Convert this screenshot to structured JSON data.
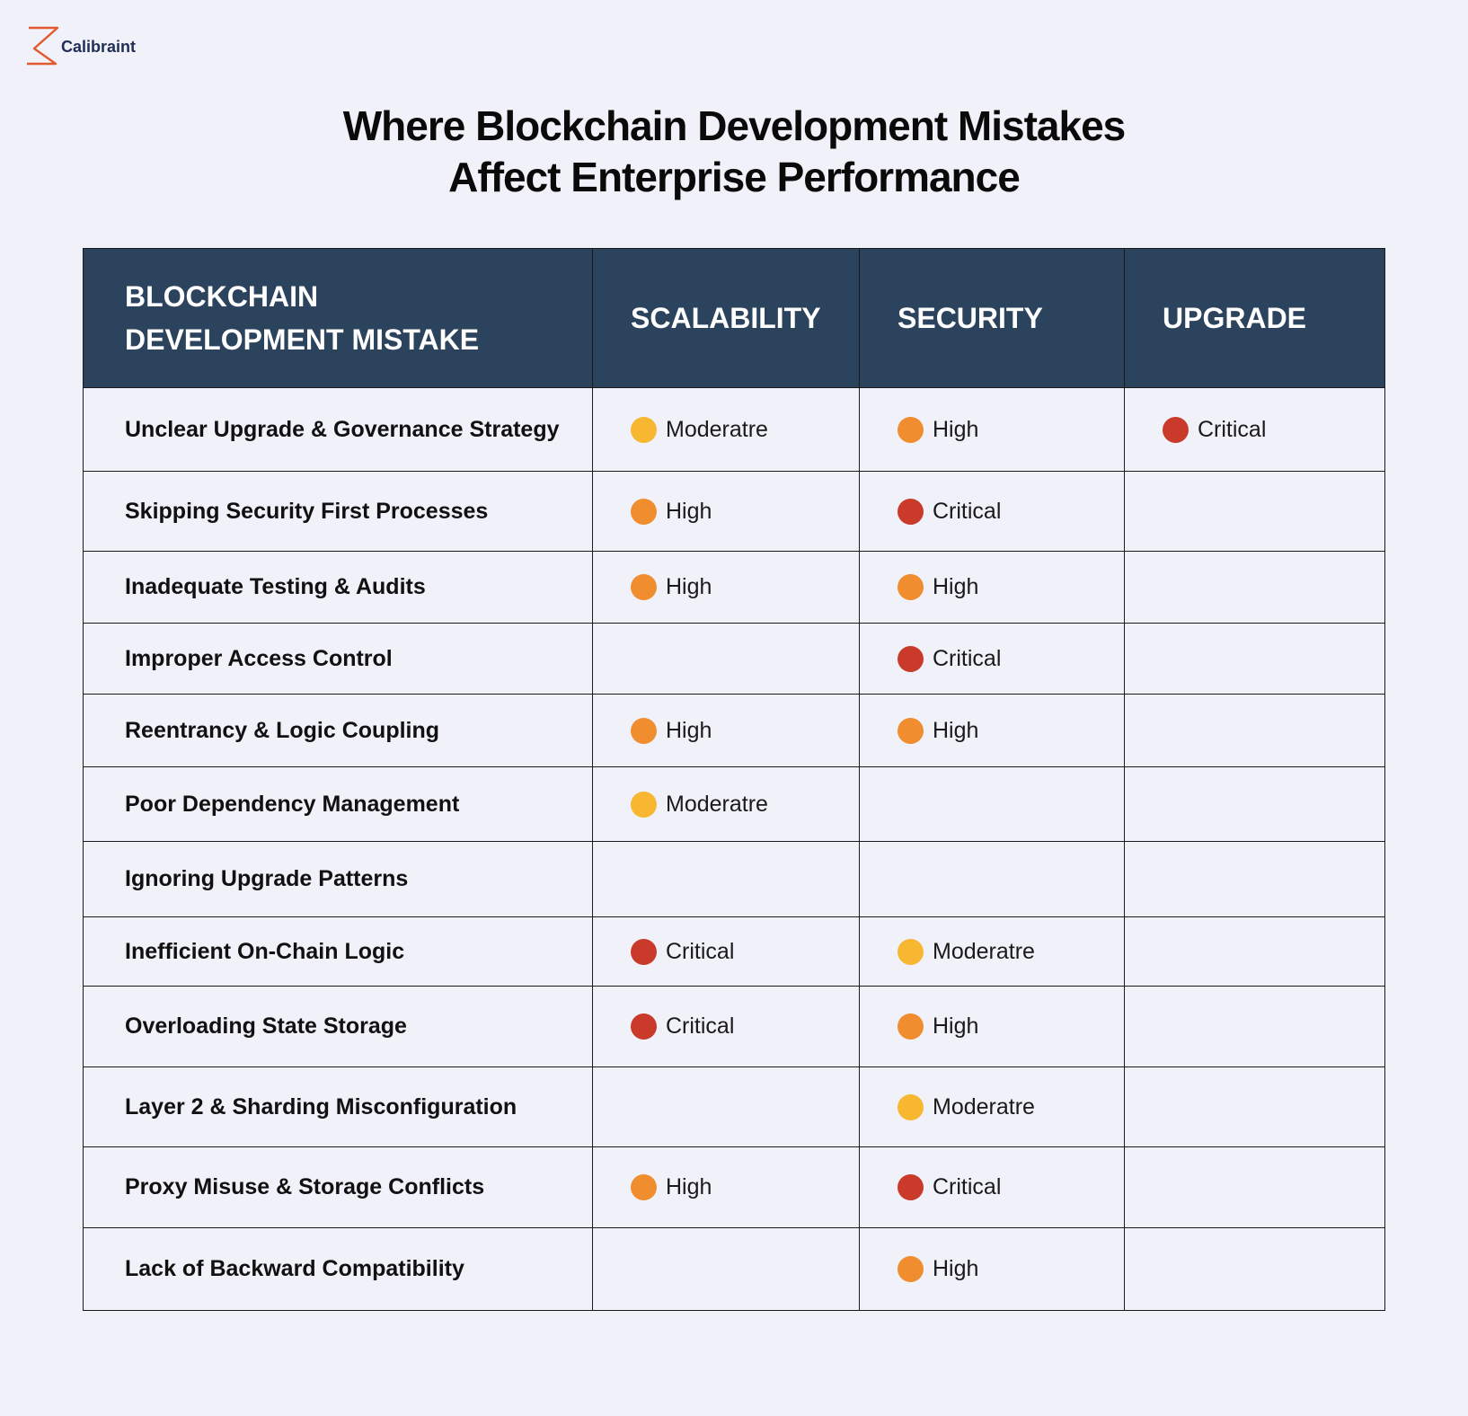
{
  "brand": {
    "name": "Calibraint",
    "icon": "calibraint-logo-icon",
    "color": "#e25a2d"
  },
  "title": {
    "line1": "Where Blockchain Development Mistakes",
    "line2": "Affect Enterprise Performance"
  },
  "table": {
    "headers": {
      "mistake_line1": "BLOCKCHAIN",
      "mistake_line2": "DEVELOPMENT MISTAKE",
      "scalability": "SCALABILITY",
      "security": "SECURITY",
      "upgrade": "UPGRADE"
    },
    "header_bg": "#2c435e",
    "level_colors": {
      "Moderatre": "#f7b731",
      "High": "#ef8d2f",
      "Critical": "#c93a2b"
    },
    "rows": [
      {
        "mistake": "Unclear Upgrade & Governance Strategy",
        "scalability": "Moderatre",
        "security": "High",
        "upgrade": "Critical"
      },
      {
        "mistake": "Skipping Security First Processes",
        "scalability": "High",
        "security": "Critical",
        "upgrade": ""
      },
      {
        "mistake": "Inadequate Testing & Audits",
        "scalability": "High",
        "security": "High",
        "upgrade": ""
      },
      {
        "mistake": "Improper Access Control",
        "scalability": "",
        "security": "Critical",
        "upgrade": ""
      },
      {
        "mistake": "Reentrancy & Logic Coupling",
        "scalability": "High",
        "security": "High",
        "upgrade": ""
      },
      {
        "mistake": "Poor Dependency Management",
        "scalability": "Moderatre",
        "security": "",
        "upgrade": ""
      },
      {
        "mistake": "Ignoring Upgrade Patterns",
        "scalability": "",
        "security": "",
        "upgrade": ""
      },
      {
        "mistake": "Inefficient On-Chain Logic",
        "scalability": "Critical",
        "security": "Moderatre",
        "upgrade": ""
      },
      {
        "mistake": "Overloading State Storage",
        "scalability": "Critical",
        "security": "High",
        "upgrade": ""
      },
      {
        "mistake": "Layer 2 & Sharding Misconfiguration",
        "scalability": "",
        "security": "Moderatre",
        "upgrade": ""
      },
      {
        "mistake": "Proxy Misuse & Storage Conflicts",
        "scalability": "High",
        "security": "Critical",
        "upgrade": ""
      },
      {
        "mistake": "Lack of Backward Compatibility",
        "scalability": "",
        "security": "High",
        "upgrade": ""
      }
    ]
  }
}
